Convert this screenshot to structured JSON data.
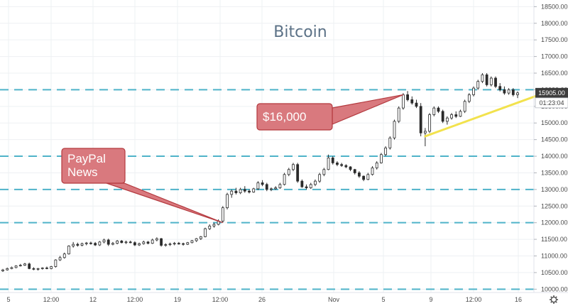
{
  "chart_data": {
    "type": "candlestick",
    "title": "Bitcoin",
    "ylim": [
      9900,
      18700
    ],
    "y_ticks": [
      10000,
      10500,
      11000,
      11500,
      12000,
      12500,
      13000,
      13500,
      14000,
      14500,
      15000,
      15500,
      16000,
      16500,
      17000,
      17500,
      18000,
      18500
    ],
    "y_tick_labels": [
      "10000.00",
      "10500.00",
      "11000.00",
      "11500.00",
      "12000.00",
      "12500.00",
      "13000.00",
      "13500.00",
      "14000.00",
      "14500.00",
      "15000.00",
      "15500.00",
      "16000.00",
      "16500.00",
      "17000.00",
      "17500.00",
      "18000.00",
      "18500.00"
    ],
    "x_tick_labels": [
      "5",
      "12:00",
      "12",
      "12:00",
      "19",
      "12:00",
      "26",
      "Nov",
      "5",
      "9",
      "12:00",
      "16"
    ],
    "grid": true,
    "horizontal_levels": [
      10000,
      12000,
      13000,
      14000,
      16000
    ],
    "price_label": "15905.00",
    "time_label": "01:23:04",
    "last_price": 15905,
    "series": [
      {
        "ohlc": [
          [
            10550,
            10610,
            10520,
            10580
          ],
          [
            10580,
            10650,
            10560,
            10620
          ],
          [
            10620,
            10680,
            10600,
            10650
          ],
          [
            10650,
            10720,
            10630,
            10700
          ],
          [
            10700,
            10760,
            10680,
            10720
          ],
          [
            10720,
            10790,
            10700,
            10760
          ],
          [
            10760,
            10800,
            10600,
            10620
          ],
          [
            10620,
            10660,
            10570,
            10600
          ],
          [
            10600,
            10640,
            10560,
            10620
          ],
          [
            10620,
            10660,
            10590,
            10640
          ],
          [
            10640,
            10680,
            10600,
            10620
          ],
          [
            10620,
            10700,
            10600,
            10680
          ],
          [
            10680,
            10900,
            10650,
            10880
          ],
          [
            10880,
            11000,
            10850,
            10950
          ],
          [
            10950,
            11100,
            10920,
            11060
          ],
          [
            11060,
            11320,
            11040,
            11300
          ],
          [
            11300,
            11420,
            11250,
            11350
          ],
          [
            11350,
            11400,
            11280,
            11320
          ],
          [
            11320,
            11400,
            11290,
            11370
          ],
          [
            11370,
            11420,
            11320,
            11390
          ],
          [
            11390,
            11430,
            11340,
            11380
          ],
          [
            11380,
            11420,
            11300,
            11330
          ],
          [
            11330,
            11450,
            11300,
            11420
          ],
          [
            11420,
            11520,
            11380,
            11480
          ],
          [
            11480,
            11520,
            11300,
            11350
          ],
          [
            11350,
            11420,
            11320,
            11380
          ],
          [
            11380,
            11480,
            11350,
            11450
          ],
          [
            11450,
            11480,
            11380,
            11400
          ],
          [
            11400,
            11460,
            11360,
            11420
          ],
          [
            11420,
            11460,
            11380,
            11400
          ],
          [
            11400,
            11440,
            11300,
            11330
          ],
          [
            11330,
            11400,
            11300,
            11370
          ],
          [
            11370,
            11460,
            11340,
            11420
          ],
          [
            11420,
            11450,
            11350,
            11380
          ],
          [
            11380,
            11520,
            11360,
            11480
          ],
          [
            11480,
            11560,
            11440,
            11520
          ],
          [
            11520,
            11540,
            11280,
            11320
          ],
          [
            11320,
            11380,
            11280,
            11340
          ],
          [
            11340,
            11400,
            11300,
            11360
          ],
          [
            11360,
            11420,
            11320,
            11380
          ],
          [
            11380,
            11420,
            11340,
            11370
          ],
          [
            11370,
            11400,
            11310,
            11350
          ],
          [
            11350,
            11420,
            11330,
            11400
          ],
          [
            11400,
            11480,
            11380,
            11460
          ],
          [
            11460,
            11540,
            11420,
            11520
          ],
          [
            11520,
            11600,
            11480,
            11580
          ],
          [
            11580,
            11850,
            11560,
            11820
          ],
          [
            11820,
            11950,
            11780,
            11900
          ],
          [
            11900,
            12000,
            11850,
            11950
          ],
          [
            11950,
            12100,
            11920,
            12050
          ],
          [
            12050,
            12500,
            12000,
            12450
          ],
          [
            12450,
            12900,
            12400,
            12850
          ],
          [
            12850,
            13000,
            12750,
            12950
          ],
          [
            12950,
            13050,
            12850,
            12900
          ],
          [
            12900,
            13050,
            12860,
            13000
          ],
          [
            13000,
            13100,
            12900,
            12950
          ],
          [
            12950,
            13000,
            12880,
            12920
          ],
          [
            12920,
            13050,
            12900,
            13020
          ],
          [
            13020,
            13250,
            12980,
            13200
          ],
          [
            13200,
            13280,
            13100,
            13150
          ],
          [
            13150,
            13200,
            12950,
            13000
          ],
          [
            13000,
            13060,
            12950,
            13020
          ],
          [
            13020,
            13100,
            12990,
            13050
          ],
          [
            13050,
            13200,
            13020,
            13150
          ],
          [
            13150,
            13500,
            13120,
            13450
          ],
          [
            13450,
            13650,
            13400,
            13600
          ],
          [
            13600,
            13800,
            13550,
            13750
          ],
          [
            13750,
            13800,
            13200,
            13250
          ],
          [
            13250,
            13300,
            13050,
            13080
          ],
          [
            13080,
            13150,
            13000,
            13050
          ],
          [
            13050,
            13200,
            13020,
            13150
          ],
          [
            13150,
            13300,
            13100,
            13250
          ],
          [
            13250,
            13500,
            13200,
            13450
          ],
          [
            13450,
            13650,
            13400,
            13600
          ],
          [
            13600,
            14050,
            13580,
            13950
          ],
          [
            13950,
            14000,
            13750,
            13800
          ],
          [
            13800,
            13850,
            13700,
            13750
          ],
          [
            13750,
            13800,
            13680,
            13720
          ],
          [
            13720,
            13760,
            13640,
            13680
          ],
          [
            13680,
            13700,
            13550,
            13600
          ],
          [
            13600,
            13620,
            13450,
            13500
          ],
          [
            13500,
            13550,
            13350,
            13400
          ],
          [
            13400,
            13420,
            13250,
            13300
          ],
          [
            13300,
            13500,
            13280,
            13450
          ],
          [
            13450,
            13700,
            13420,
            13650
          ],
          [
            13650,
            13850,
            13600,
            13800
          ],
          [
            13800,
            14100,
            13780,
            14050
          ],
          [
            14050,
            14300,
            14000,
            14250
          ],
          [
            14250,
            14600,
            14200,
            14550
          ],
          [
            14550,
            15100,
            14500,
            15050
          ],
          [
            15050,
            15500,
            15000,
            15450
          ],
          [
            15450,
            15900,
            15400,
            15850
          ],
          [
            15850,
            15960,
            15650,
            15700
          ],
          [
            15700,
            15800,
            15550,
            15600
          ],
          [
            15600,
            15700,
            15450,
            15500
          ],
          [
            15500,
            15600,
            14600,
            14700
          ],
          [
            14700,
            14850,
            14300,
            14750
          ],
          [
            14750,
            15300,
            14700,
            15250
          ],
          [
            15250,
            15500,
            15200,
            15450
          ],
          [
            15450,
            15500,
            15300,
            15350
          ],
          [
            15350,
            15400,
            15000,
            15050
          ],
          [
            15050,
            15200,
            14950,
            15150
          ],
          [
            15150,
            15300,
            15100,
            15250
          ],
          [
            15250,
            15350,
            15150,
            15200
          ],
          [
            15200,
            15400,
            15180,
            15350
          ],
          [
            15350,
            15700,
            15300,
            15650
          ],
          [
            15650,
            15900,
            15600,
            15850
          ],
          [
            15850,
            16100,
            15800,
            16050
          ],
          [
            16050,
            16300,
            16000,
            16250
          ],
          [
            16250,
            16500,
            16200,
            16450
          ],
          [
            16450,
            16500,
            16100,
            16150
          ],
          [
            16150,
            16400,
            16100,
            16350
          ],
          [
            16350,
            16400,
            16050,
            16100
          ],
          [
            16100,
            16200,
            15950,
            16000
          ],
          [
            16000,
            16100,
            15850,
            15900
          ],
          [
            15900,
            16050,
            15850,
            16000
          ],
          [
            16000,
            16050,
            15800,
            15850
          ],
          [
            15850,
            15950,
            15750,
            15905
          ]
        ]
      }
    ],
    "annotations": [
      {
        "text": "PayPal\nNews",
        "target_index": 50,
        "target_price": 12000
      },
      {
        "text": "$16,000",
        "target_index": 91,
        "target_price": 15850
      }
    ],
    "trendline": {
      "start_index": 96,
      "start_price": 14600,
      "end_index": 123,
      "end_price": 15900
    }
  },
  "colors": {
    "up": "#26a69a",
    "down": "#ef5350",
    "candle_dark": "#2b2b2b",
    "level_line": "#4fb3c9",
    "callout_fill": "#d9797e",
    "callout_stroke": "#b43a3f",
    "trendline": "#f2e24d",
    "price_tag": "#3d3d3d"
  }
}
